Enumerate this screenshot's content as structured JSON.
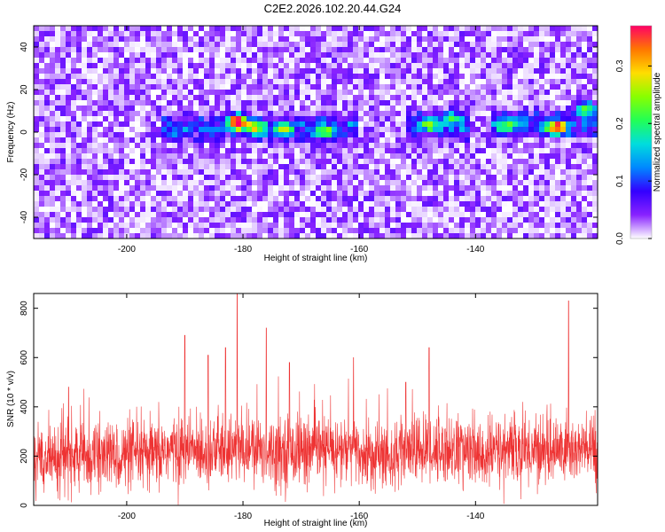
{
  "title": "C2E2.2026.102.20.44.G24",
  "colors": {
    "snr_line": "#ee3333",
    "colormap": [
      "#ffffff",
      "#8822ff",
      "#3300ff",
      "#0088ff",
      "#00dddd",
      "#22ff55",
      "#88ff00",
      "#ffdd00",
      "#ff7700",
      "#ff0066"
    ]
  },
  "chart_data": [
    {
      "type": "heatmap",
      "title": "C2E2.2026.102.20.44.G24",
      "xlabel": "Height of straight line (km)",
      "ylabel": "Frequency (Hz)",
      "xlim": [
        -216,
        -119
      ],
      "ylim": [
        -50,
        50
      ],
      "xticks": [
        -200,
        -180,
        -160,
        -140
      ],
      "xtick_labels": [
        "-200",
        "-180",
        "-160",
        "-140"
      ],
      "yticks": [
        40,
        20,
        0,
        -20,
        -40
      ],
      "ytick_labels": [
        "40",
        "20",
        "0",
        "-20",
        "-40"
      ],
      "colorbar": {
        "label": "Normalized spectral amplitude",
        "range": [
          0.0,
          0.37
        ],
        "ticks": [
          0.0,
          0.1,
          0.2,
          0.3
        ],
        "tick_labels": [
          "0.0",
          "0.1",
          "0.2",
          "0.3"
        ]
      },
      "noise_amplitude_range": [
        0.0,
        0.06
      ],
      "signal_band": {
        "segments": [
          {
            "x": [
              -194,
              -160
            ],
            "freq_center": 2,
            "freq_halfwidth": 8
          },
          {
            "x": [
              -152,
              -141
            ],
            "freq_center": 3,
            "freq_halfwidth": 9
          },
          {
            "x": [
              -137,
              -119
            ],
            "freq_center": 4,
            "freq_halfwidth": 8
          }
        ],
        "peaks": [
          {
            "x": -181,
            "freq": 5,
            "amplitude": 0.37
          },
          {
            "x": -178,
            "freq": 2,
            "amplitude": 0.2
          },
          {
            "x": -173,
            "freq": 1,
            "amplitude": 0.18
          },
          {
            "x": -166,
            "freq": 0,
            "amplitude": 0.17
          },
          {
            "x": -148,
            "freq": 4,
            "amplitude": 0.15
          },
          {
            "x": -144,
            "freq": 6,
            "amplitude": 0.14
          },
          {
            "x": -126,
            "freq": 2,
            "amplitude": 0.3
          },
          {
            "x": -121,
            "freq": 11,
            "amplitude": 0.2
          },
          {
            "x": -135,
            "freq": 2,
            "amplitude": 0.16
          }
        ]
      }
    },
    {
      "type": "line",
      "xlabel": "Height of straight line (km)",
      "ylabel": "SNR (10 * v/v)",
      "xlim": [
        -216,
        -119
      ],
      "ylim": [
        0,
        860
      ],
      "xticks": [
        -200,
        -180,
        -160,
        -140
      ],
      "xtick_labels": [
        "-200",
        "-180",
        "-160",
        "-140"
      ],
      "yticks": [
        0,
        200,
        400,
        600,
        800
      ],
      "ytick_labels": [
        "0",
        "200",
        "400",
        "600",
        "800"
      ],
      "baseline_mean": 200,
      "baseline_spread": 70,
      "notable_peaks": [
        {
          "x": -181,
          "y": 860
        },
        {
          "x": -124,
          "y": 830
        },
        {
          "x": -148,
          "y": 640
        },
        {
          "x": -183,
          "y": 640
        },
        {
          "x": -190,
          "y": 690
        },
        {
          "x": -176,
          "y": 720
        },
        {
          "x": -186,
          "y": 610
        },
        {
          "x": -161,
          "y": 600
        },
        {
          "x": -172,
          "y": 580
        },
        {
          "x": -152,
          "y": 500
        },
        {
          "x": -210,
          "y": 480
        }
      ]
    }
  ]
}
